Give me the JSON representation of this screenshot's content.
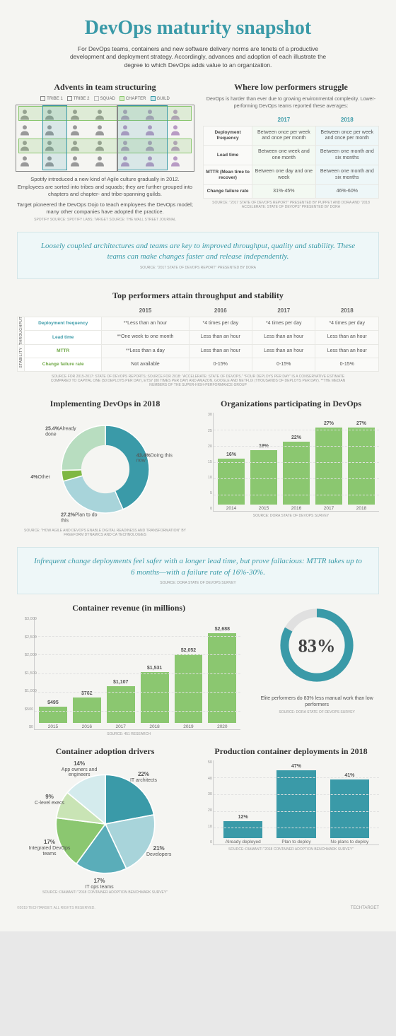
{
  "title": "DevOps maturity snapshot",
  "intro": "For DevOps teams, containers and new software delivery norms are tenets of a productive development and deployment strategy. Accordingly, advances and adoption of each illustrate the degree to which DevOps adds value to an organization.",
  "advents": {
    "title": "Advents in team structuring",
    "legend": [
      {
        "label": "TRIBE 1",
        "color": "#888888",
        "fill": "none"
      },
      {
        "label": "TRIBE 2",
        "color": "#888888",
        "fill": "none"
      },
      {
        "label": "SQUAD",
        "color": "#bbbbbb",
        "fill": "none"
      },
      {
        "label": "CHAPTER",
        "color": "#8bc770",
        "fill": "#d8edc8"
      },
      {
        "label": "GUILD",
        "color": "#3a9aa8",
        "fill": "#cce8ec"
      }
    ],
    "person_gray": "#999999",
    "person_purple": "#b89bc4",
    "grid_cols": 7,
    "grid_rows": 4,
    "purple_cols_start": 4,
    "text1": "Spotify introduced a new kind of Agile culture gradually in 2012. Employees are sorted into tribes and squads; they are further grouped into chapters and chapter- and tribe-spanning guilds.",
    "text2": "Target pioneered the DevOps Dojo to teach employees the DevOps model; many other companies have adopted the practice.",
    "source": "SPOTIFY SOURCE: SPOTIFY LABS; TARGET SOURCE: THE WALL STREET JOURNAL"
  },
  "low_perf": {
    "title": "Where low performers struggle",
    "desc": "DevOps is harder than ever due to growing environmental complexity. Lower-performing DevOps teams reported these averages:",
    "cols": [
      "2017",
      "2018"
    ],
    "rows": [
      {
        "label": "Deployment frequency",
        "c17": "Between once per week and once per month",
        "c18": "Between once per week and once per month"
      },
      {
        "label": "Lead time",
        "c17": "Between one week and one month",
        "c18": "Between one month and six months"
      },
      {
        "label": "MTTR (Mean time to recover)",
        "c17": "Between one day and one week",
        "c18": "Between one month and six months"
      },
      {
        "label": "Change failure rate",
        "c17": "31%-45%",
        "c18": "46%-60%"
      }
    ],
    "source": "SOURCE: \"2017 STATE OF DEVOPS REPORT\" PRESENTED BY PUPPET AND DORA AND \"2018 ACCELERATE: STATE OF DEVOPS\" PRESENTED BY DORA"
  },
  "callout1": {
    "text": "Loosely coupled architectures and teams are key to improved throughput, quality and stability. These teams can make changes faster and release independently.",
    "source": "SOURCE: \"2017 STATE OF DEVOPS REPORT\" PRESENTED BY DORA"
  },
  "top_perf": {
    "title": "Top performers attain throughput and stability",
    "years": [
      "2015",
      "2016",
      "2017",
      "2018"
    ],
    "throughput_label": "THROUGHPUT",
    "stability_label": "STABILITY",
    "rows": [
      {
        "group": "thru",
        "label": "Deployment frequency",
        "vals": [
          "**Less than an hour",
          "*4 times per day",
          "*4 times per day",
          "*4 times per day"
        ]
      },
      {
        "group": "thru",
        "label": "Lead time",
        "vals": [
          "**One week to one month",
          "Less than an hour",
          "Less than an hour",
          "Less than an hour"
        ]
      },
      {
        "group": "stab",
        "label": "MTTR",
        "vals": [
          "**Less than a day",
          "Less than an hour",
          "Less than an hour",
          "Less than an hour"
        ]
      },
      {
        "group": "stab",
        "label": "Change failure rate",
        "vals": [
          "Not available",
          "0-15%",
          "0-15%",
          "0-15%"
        ]
      }
    ],
    "source": "SOURCE FOR 2015-2017: STATE OF DEVOPS REPORTS; SOURCE FOR 2018: \"ACCELERATE: STATE OF DEVOPS.\" *FOUR DEPLOYS PER DAY\" IS A CONSERVATIVE ESTIMATE COMPARED TO CAPITAL ONE (50 DEPLOYS PER DAY), ETSY (80 TIMES PER DAY) AND AMAZON, GOOGLE AND NETFLIX (THOUSANDS OF DEPLOYS PER DAY). **THE MEDIAN NUMBERS OF THE SUPER-HIGH-PERFORMANCE GROUP"
  },
  "donut1": {
    "title": "Implementing DevOps in 2018",
    "slices": [
      {
        "label": "Doing this now",
        "value": 43.4,
        "color": "#3a9aa8"
      },
      {
        "label": "Plan to do this",
        "value": 27.2,
        "color": "#a8d4da"
      },
      {
        "label": "Other",
        "value": 4,
        "color": "#7fb843"
      },
      {
        "label": "Already done",
        "value": 25.4,
        "color": "#b8ddc0"
      }
    ],
    "source": "SOURCE: \"HOW AGILE AND DEVOPS ENABLE DIGITAL READINESS AND TRANSFORMATION\" BY FREEFORM DYNAMICS AND CA TECHNOLOGIES"
  },
  "bar1": {
    "title": "Organizations participating in DevOps",
    "color": "#8bc770",
    "ymax": 30,
    "ytick_step": 5,
    "data": [
      {
        "cat": "2014",
        "val": 16,
        "label": "16%"
      },
      {
        "cat": "2015",
        "val": 19,
        "label": "19%"
      },
      {
        "cat": "2016",
        "val": 22,
        "label": "22%"
      },
      {
        "cat": "2017",
        "val": 27,
        "label": "27%"
      },
      {
        "cat": "2018",
        "val": 27,
        "label": "27%"
      }
    ],
    "source": "SOURCE: DORA STATE OF DEVOPS SURVEY"
  },
  "callout2": {
    "text": "Infrequent change deployments feel safer with a longer lead time, but prove fallacious: MTTR takes up to 6 months—with a failure rate of 16%-30%.",
    "source": "SOURCE: DORA STATE OF DEVOPS SURVEY"
  },
  "bar2": {
    "title": "Container revenue (in millions)",
    "color": "#8bc770",
    "ymax": 3000,
    "ytick_step": 500,
    "y_prefix": "$",
    "data": [
      {
        "cat": "2015",
        "val": 495,
        "label": "$495"
      },
      {
        "cat": "2016",
        "val": 762,
        "label": "$762"
      },
      {
        "cat": "2017",
        "val": 1107,
        "label": "$1,107"
      },
      {
        "cat": "2018",
        "val": 1531,
        "label": "$1,531"
      },
      {
        "cat": "2019",
        "val": 2052,
        "label": "$2,052"
      },
      {
        "cat": "2020",
        "val": 2688,
        "label": "$2,688"
      }
    ],
    "source": "SOURCE: 451 RESEARCH"
  },
  "ring": {
    "value": "83%",
    "fill_pct": 83,
    "color": "#3a9aa8",
    "track": "#e0e0e0",
    "text": "Elite performers do 83% less manual work than low performers",
    "source": "SOURCE: DORA STATE OF DEVOPS SURVEY"
  },
  "pie": {
    "title": "Container adoption drivers",
    "slices": [
      {
        "label": "IT architects",
        "value": 22,
        "color": "#3a9aa8"
      },
      {
        "label": "Developers",
        "value": 21,
        "color": "#a8d4da"
      },
      {
        "label": "IT ops teams",
        "value": 17,
        "color": "#5aadb9"
      },
      {
        "label": "Integrated DevOps teams",
        "value": 17,
        "color": "#8bc770"
      },
      {
        "label": "C-level execs",
        "value": 9,
        "color": "#c9e4b5"
      },
      {
        "label": "App owners and engineers",
        "value": 14,
        "color": "#d4ebed"
      }
    ],
    "source": "SOURCE: DIAMANTI \"2018 CONTAINER ADOPTION BENCHMARK SURVEY\""
  },
  "bar3": {
    "title": "Production container deployments in 2018",
    "color": "#3a9aa8",
    "ymax": 50,
    "ytick_step": 10,
    "data": [
      {
        "cat": "Already deployed",
        "val": 12,
        "label": "12%"
      },
      {
        "cat": "Plan to deploy",
        "val": 47,
        "label": "47%"
      },
      {
        "cat": "No plans to deploy",
        "val": 41,
        "label": "41%"
      }
    ],
    "source": "SOURCE: DIAMANTI \"2018 CONTAINER ADOPTION BENCHMARK SURVEY\""
  },
  "footer": {
    "copyright": "©2019 TECHTARGET. ALL RIGHTS RESERVED.",
    "logo": "TechTarget"
  }
}
